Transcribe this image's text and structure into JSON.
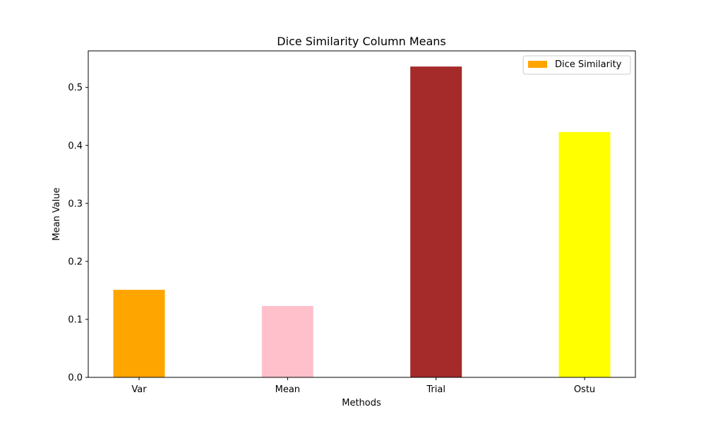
{
  "chart_data": {
    "type": "bar",
    "title": "Dice Similarity Column Means",
    "xlabel": "Methods",
    "ylabel": "Mean Value",
    "categories": [
      "Var",
      "Mean",
      "Trial",
      "Ostu"
    ],
    "series": [
      {
        "name": "Dice Similarity",
        "values": [
          0.151,
          0.123,
          0.536,
          0.423
        ],
        "colors": [
          "#ffa500",
          "#ffc0cb",
          "#a52a2a",
          "#ffff00"
        ]
      }
    ],
    "yticks": [
      "0.0",
      "0.1",
      "0.2",
      "0.3",
      "0.4",
      "0.5"
    ],
    "ylim": [
      0,
      0.563
    ],
    "grid": false,
    "legend_position": "upper right",
    "legend_swatch_color": "#ffa500"
  }
}
